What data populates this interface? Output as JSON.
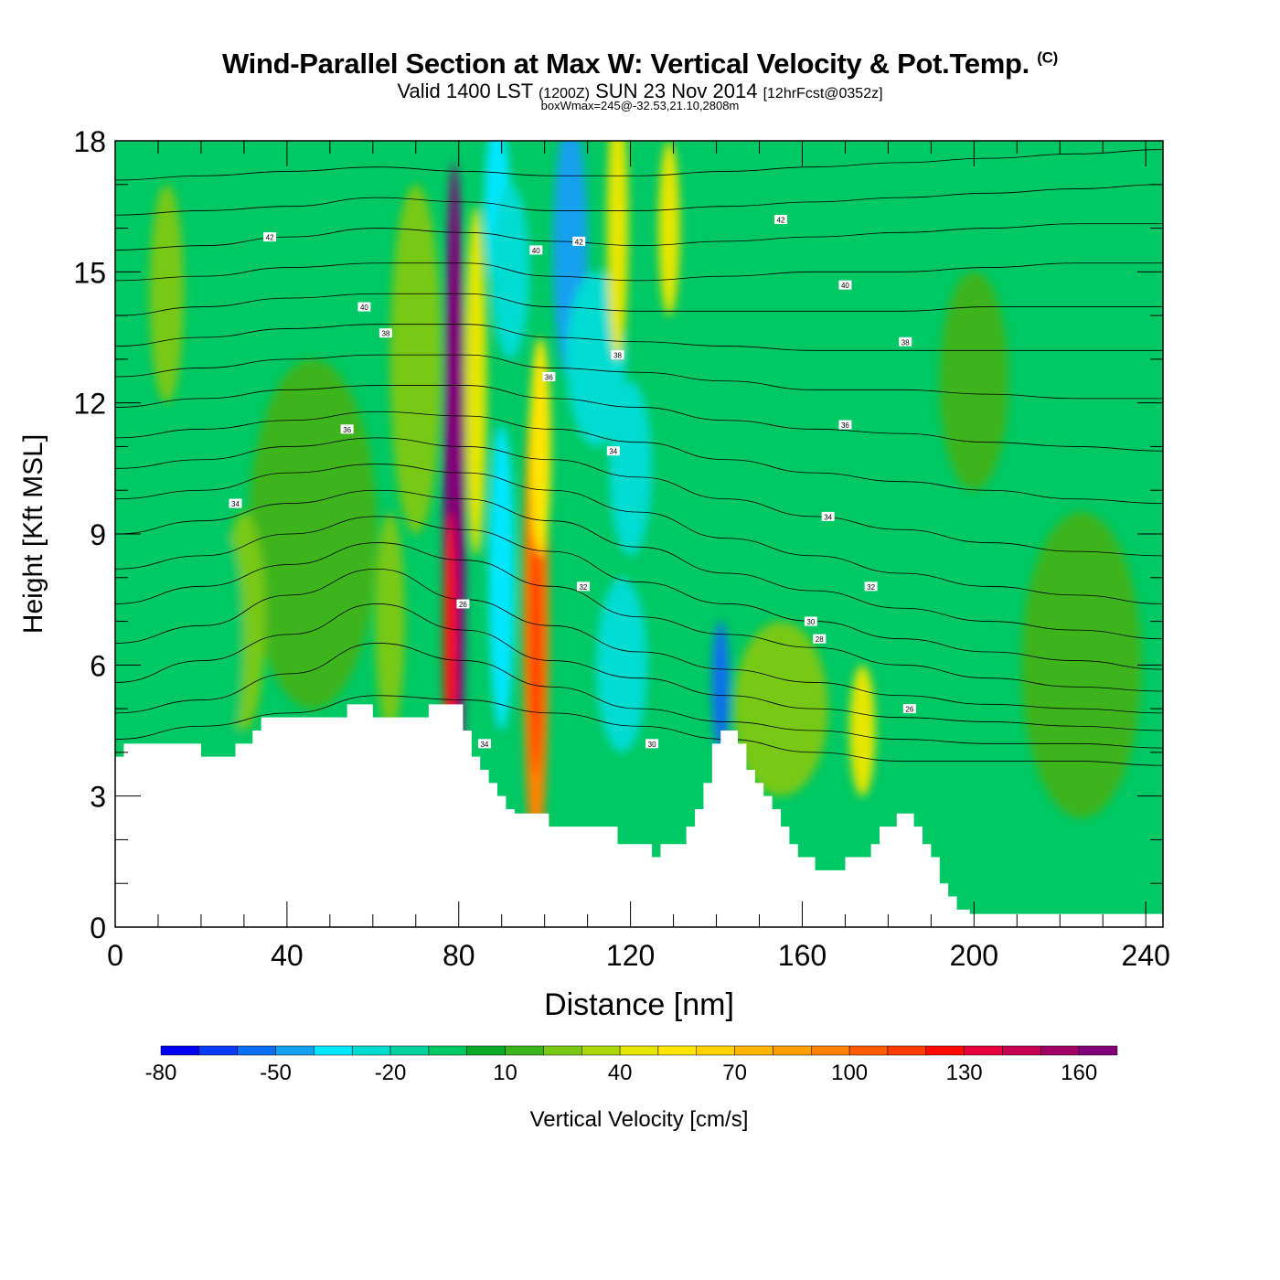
{
  "header": {
    "title": "Wind-Parallel Section at Max W: Vertical Velocity & Pot.Temp.",
    "title_mark": "(C)",
    "subtitle_valid": "Valid 1400 LST",
    "subtitle_z": "(1200Z)",
    "subtitle_date": "SUN 23 Nov 2014",
    "subtitle_fcst": "[12hrFcst@0352z]",
    "subtitle2": "boxWmax=245@-32.53,21.10,2808m"
  },
  "chart_data": {
    "type": "heatmap",
    "xlabel": "Distance [nm]",
    "ylabel": "Height [Kft MSL]",
    "xlim": [
      0,
      244
    ],
    "ylim": [
      0,
      18
    ],
    "xticks": [
      0,
      40,
      80,
      120,
      160,
      200,
      240
    ],
    "yticks": [
      0,
      3,
      6,
      9,
      12,
      15,
      18
    ],
    "colorbar": {
      "label": "Vertical Velocity [cm/s]",
      "tick_labels": [
        -80,
        -50,
        -20,
        10,
        40,
        70,
        100,
        130,
        160
      ],
      "levels": [
        -80,
        -70,
        -60,
        -50,
        -40,
        -30,
        -20,
        -10,
        0,
        10,
        20,
        30,
        40,
        50,
        60,
        70,
        80,
        90,
        100,
        110,
        120,
        130,
        140,
        150,
        160,
        170
      ],
      "colors": [
        "#0000f0",
        "#0a3cf5",
        "#0a6ef0",
        "#14a0f0",
        "#00e6ff",
        "#00dcd2",
        "#00d2a0",
        "#00c864",
        "#0aaa28",
        "#3cb41e",
        "#78c814",
        "#aad70a",
        "#e6e600",
        "#ffe600",
        "#ffd200",
        "#ffb400",
        "#ffa000",
        "#ff8200",
        "#ff5a00",
        "#ff3c00",
        "#ff0a00",
        "#e6003c",
        "#c80050",
        "#a00064",
        "#820078"
      ]
    },
    "terrain_kft": [
      [
        0,
        3.9
      ],
      [
        2,
        3.9
      ],
      [
        2,
        4.2
      ],
      [
        20,
        4.2
      ],
      [
        20,
        3.9
      ],
      [
        28,
        3.9
      ],
      [
        28,
        4.2
      ],
      [
        32,
        4.2
      ],
      [
        32,
        4.5
      ],
      [
        34,
        4.5
      ],
      [
        34,
        4.8
      ],
      [
        54,
        4.8
      ],
      [
        54,
        5.1
      ],
      [
        60,
        5.1
      ],
      [
        60,
        4.8
      ],
      [
        73,
        4.8
      ],
      [
        73,
        5.1
      ],
      [
        81,
        5.1
      ],
      [
        81,
        4.5
      ],
      [
        83,
        4.5
      ],
      [
        83,
        3.9
      ],
      [
        85,
        3.9
      ],
      [
        85,
        3.6
      ],
      [
        87,
        3.6
      ],
      [
        87,
        3.3
      ],
      [
        89,
        3.3
      ],
      [
        89,
        3.0
      ],
      [
        91,
        3.0
      ],
      [
        91,
        2.7
      ],
      [
        93,
        2.7
      ],
      [
        93,
        2.6
      ],
      [
        101,
        2.6
      ],
      [
        101,
        2.3
      ],
      [
        117,
        2.3
      ],
      [
        117,
        1.9
      ],
      [
        125,
        1.9
      ],
      [
        125,
        1.6
      ],
      [
        127,
        1.6
      ],
      [
        127,
        1.9
      ],
      [
        133,
        1.9
      ],
      [
        133,
        2.3
      ],
      [
        135,
        2.3
      ],
      [
        135,
        2.7
      ],
      [
        137,
        2.7
      ],
      [
        137,
        3.3
      ],
      [
        139,
        3.3
      ],
      [
        139,
        4.2
      ],
      [
        141,
        4.2
      ],
      [
        141,
        4.5
      ],
      [
        145,
        4.5
      ],
      [
        145,
        4.2
      ],
      [
        147,
        4.2
      ],
      [
        147,
        3.6
      ],
      [
        149,
        3.6
      ],
      [
        149,
        3.3
      ],
      [
        151,
        3.3
      ],
      [
        151,
        3.0
      ],
      [
        153,
        3.0
      ],
      [
        153,
        2.7
      ],
      [
        155,
        2.7
      ],
      [
        155,
        2.3
      ],
      [
        157,
        2.3
      ],
      [
        157,
        1.9
      ],
      [
        159,
        1.9
      ],
      [
        159,
        1.6
      ],
      [
        163,
        1.6
      ],
      [
        163,
        1.3
      ],
      [
        170,
        1.3
      ],
      [
        170,
        1.6
      ],
      [
        176,
        1.6
      ],
      [
        176,
        1.9
      ],
      [
        178,
        1.9
      ],
      [
        178,
        2.3
      ],
      [
        182,
        2.3
      ],
      [
        182,
        2.6
      ],
      [
        186,
        2.6
      ],
      [
        186,
        2.3
      ],
      [
        188,
        2.3
      ],
      [
        188,
        1.9
      ],
      [
        190,
        1.9
      ],
      [
        190,
        1.6
      ],
      [
        192,
        1.6
      ],
      [
        192,
        1.0
      ],
      [
        194,
        1.0
      ],
      [
        194,
        0.7
      ],
      [
        196,
        0.7
      ],
      [
        196,
        0.4
      ],
      [
        199,
        0.4
      ],
      [
        199,
        0.3
      ],
      [
        244,
        0.3
      ]
    ],
    "w_features": [
      {
        "x": 79,
        "y": 9.5,
        "w": 5,
        "h": 16,
        "v": 170
      },
      {
        "x": 79,
        "y": 10.5,
        "w": 3,
        "h": 9,
        "v": 160
      },
      {
        "x": 78,
        "y": 6.5,
        "w": 3,
        "h": 6,
        "v": 120
      },
      {
        "x": 84,
        "y": 12.5,
        "w": 5,
        "h": 8,
        "v": 40
      },
      {
        "x": 98,
        "y": 7,
        "w": 6,
        "h": 11,
        "v": 90
      },
      {
        "x": 98,
        "y": 6.5,
        "w": 3,
        "h": 6,
        "v": 110
      },
      {
        "x": 99,
        "y": 11,
        "w": 5,
        "h": 5,
        "v": 50
      },
      {
        "x": 90,
        "y": 8,
        "w": 6,
        "h": 7,
        "v": -40
      },
      {
        "x": 89,
        "y": 16.5,
        "w": 6,
        "h": 4,
        "v": -40
      },
      {
        "x": 92,
        "y": 15,
        "w": 9,
        "h": 4,
        "v": -30
      },
      {
        "x": 106,
        "y": 15.5,
        "w": 8,
        "h": 6,
        "v": -50
      },
      {
        "x": 112,
        "y": 13,
        "w": 14,
        "h": 4,
        "v": -30
      },
      {
        "x": 120,
        "y": 10.5,
        "w": 10,
        "h": 4,
        "v": -30
      },
      {
        "x": 118,
        "y": 6,
        "w": 12,
        "h": 4,
        "v": -25
      },
      {
        "x": 141,
        "y": 5.5,
        "w": 4,
        "h": 3,
        "v": -60
      },
      {
        "x": 117,
        "y": 16,
        "w": 5,
        "h": 6,
        "v": 40
      },
      {
        "x": 129,
        "y": 16,
        "w": 5,
        "h": 4,
        "v": 40
      },
      {
        "x": 70,
        "y": 13,
        "w": 12,
        "h": 8,
        "v": 20
      },
      {
        "x": 64,
        "y": 7,
        "w": 7,
        "h": 5,
        "v": 20
      },
      {
        "x": 46,
        "y": 9,
        "w": 30,
        "h": 8,
        "v": 10
      },
      {
        "x": 30,
        "y": 7,
        "w": 10,
        "h": 5,
        "v": 20
      },
      {
        "x": 12,
        "y": 14.5,
        "w": 8,
        "h": 5,
        "v": 20
      },
      {
        "x": 155,
        "y": 5,
        "w": 22,
        "h": 4,
        "v": 20
      },
      {
        "x": 174,
        "y": 4.5,
        "w": 6,
        "h": 3,
        "v": 40
      },
      {
        "x": 225,
        "y": 6,
        "w": 28,
        "h": 7,
        "v": 10
      },
      {
        "x": 200,
        "y": 12.5,
        "w": 16,
        "h": 5,
        "v": 10
      },
      {
        "x": 26,
        "y": 6.5,
        "w": 8,
        "h": 5,
        "v": -10
      },
      {
        "x": 150,
        "y": 10,
        "w": 14,
        "h": 5,
        "v": -5
      }
    ],
    "theta_lines_kft": [
      [
        4.3,
        4.6,
        4.9,
        5.3,
        5.2,
        4.9,
        4.6,
        4.3,
        4.0,
        3.8,
        3.8,
        3.8,
        3.7
      ],
      [
        4.9,
        5.2,
        5.8,
        6.5,
        6.1,
        5.5,
        5.0,
        4.7,
        4.5,
        4.3,
        4.2,
        4.2,
        4.1
      ],
      [
        5.6,
        6.1,
        6.7,
        7.4,
        6.8,
        6.1,
        5.7,
        5.3,
        5.0,
        4.8,
        4.7,
        4.6,
        4.5
      ],
      [
        6.5,
        6.9,
        7.6,
        8.2,
        7.5,
        6.9,
        6.3,
        5.9,
        5.6,
        5.3,
        5.1,
        5.0,
        4.9
      ],
      [
        7.4,
        7.8,
        8.3,
        8.8,
        8.4,
        7.8,
        7.1,
        6.7,
        6.4,
        6.0,
        5.7,
        5.5,
        5.4
      ],
      [
        8.2,
        8.5,
        9.0,
        9.4,
        9.1,
        8.6,
        7.9,
        7.4,
        7.0,
        6.6,
        6.3,
        6.1,
        5.9
      ],
      [
        9.0,
        9.3,
        9.7,
        10.0,
        9.8,
        9.3,
        8.7,
        8.1,
        7.7,
        7.3,
        7.0,
        6.8,
        6.6
      ],
      [
        9.8,
        10.0,
        10.4,
        10.6,
        10.4,
        10.0,
        9.5,
        8.9,
        8.5,
        8.1,
        7.8,
        7.6,
        7.4
      ],
      [
        10.5,
        10.7,
        11.0,
        11.2,
        11.0,
        10.7,
        10.3,
        9.8,
        9.4,
        9.1,
        8.8,
        8.6,
        8.5
      ],
      [
        11.2,
        11.4,
        11.6,
        11.8,
        11.7,
        11.4,
        11.1,
        10.7,
        10.4,
        10.2,
        10.0,
        9.8,
        9.7
      ],
      [
        11.9,
        12.1,
        12.3,
        12.4,
        12.4,
        12.1,
        11.9,
        11.6,
        11.4,
        11.3,
        11.1,
        11.0,
        10.9
      ],
      [
        12.6,
        12.8,
        13.0,
        13.1,
        13.1,
        12.8,
        12.7,
        12.5,
        12.3,
        12.3,
        12.2,
        12.1,
        12.1
      ],
      [
        13.3,
        13.5,
        13.7,
        13.8,
        13.8,
        13.5,
        13.4,
        13.3,
        13.2,
        13.2,
        13.2,
        13.2,
        13.2
      ],
      [
        14.0,
        14.2,
        14.4,
        14.5,
        14.5,
        14.2,
        14.1,
        14.1,
        14.1,
        14.1,
        14.2,
        14.2,
        14.2
      ],
      [
        14.8,
        14.9,
        15.1,
        15.2,
        15.2,
        14.9,
        14.8,
        14.9,
        15.0,
        15.0,
        15.1,
        15.2,
        15.2
      ],
      [
        15.5,
        15.6,
        15.8,
        16.0,
        15.9,
        15.7,
        15.6,
        15.7,
        15.8,
        15.9,
        16.0,
        16.1,
        16.1
      ],
      [
        16.3,
        16.4,
        16.5,
        16.7,
        16.6,
        16.4,
        16.4,
        16.5,
        16.6,
        16.7,
        16.8,
        16.9,
        17.0
      ],
      [
        17.1,
        17.2,
        17.3,
        17.4,
        17.3,
        17.2,
        17.2,
        17.3,
        17.4,
        17.5,
        17.6,
        17.7,
        17.8
      ]
    ],
    "theta_labels": [
      {
        "text": "42",
        "x": 36,
        "y": 15.8
      },
      {
        "text": "40",
        "x": 58,
        "y": 14.2
      },
      {
        "text": "38",
        "x": 63,
        "y": 13.6
      },
      {
        "text": "36",
        "x": 54,
        "y": 11.4
      },
      {
        "text": "34",
        "x": 28,
        "y": 9.7
      },
      {
        "text": "40",
        "x": 98,
        "y": 15.5
      },
      {
        "text": "42",
        "x": 108,
        "y": 15.7
      },
      {
        "text": "38",
        "x": 117,
        "y": 13.1
      },
      {
        "text": "36",
        "x": 101,
        "y": 12.6
      },
      {
        "text": "34",
        "x": 116,
        "y": 10.9
      },
      {
        "text": "32",
        "x": 109,
        "y": 7.8
      },
      {
        "text": "26",
        "x": 81,
        "y": 7.4
      },
      {
        "text": "34",
        "x": 86,
        "y": 4.2
      },
      {
        "text": "30",
        "x": 125,
        "y": 4.2
      },
      {
        "text": "42",
        "x": 155,
        "y": 16.2
      },
      {
        "text": "40",
        "x": 170,
        "y": 14.7
      },
      {
        "text": "38",
        "x": 184,
        "y": 13.4
      },
      {
        "text": "36",
        "x": 170,
        "y": 11.5
      },
      {
        "text": "34",
        "x": 166,
        "y": 9.4
      },
      {
        "text": "32",
        "x": 176,
        "y": 7.8
      },
      {
        "text": "30",
        "x": 162,
        "y": 7.0
      },
      {
        "text": "28",
        "x": 164,
        "y": 6.6
      },
      {
        "text": "26",
        "x": 185,
        "y": 5.0
      }
    ]
  }
}
